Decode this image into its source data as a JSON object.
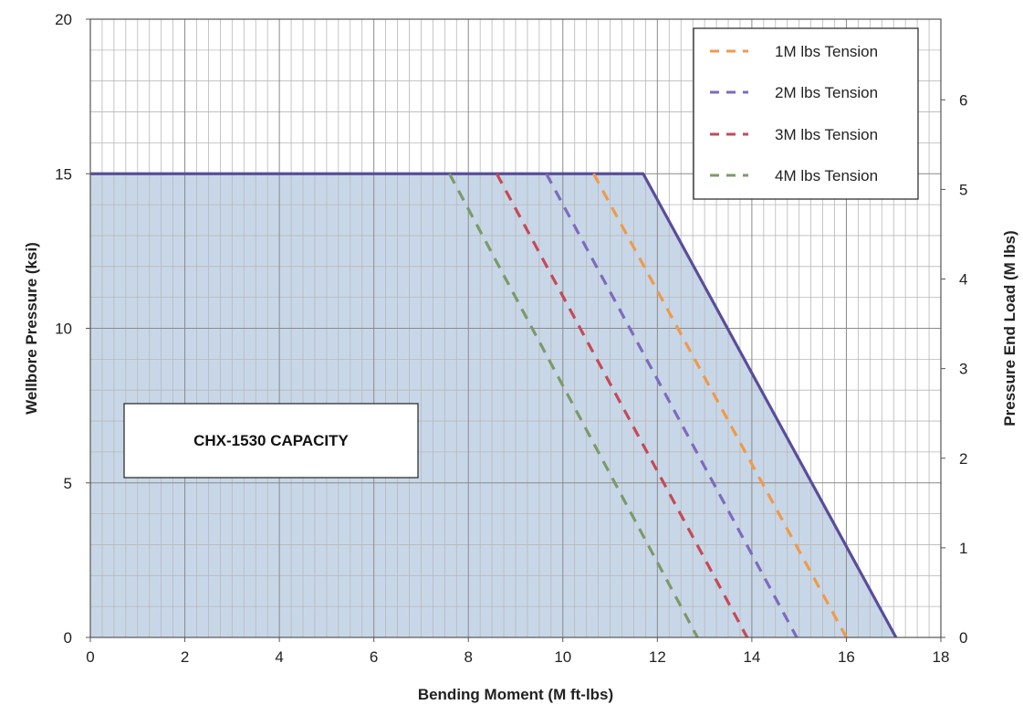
{
  "chart_data": {
    "type": "line",
    "title": "",
    "xlabel": "Bending Moment (M ft-lbs)",
    "ylabel": "Wellbore Pressure (ksi)",
    "y2label": "Pressure End Load (M lbs)",
    "xlim": [
      0,
      18
    ],
    "ylim": [
      0,
      20
    ],
    "y2lim": [
      0,
      6.9
    ],
    "x_ticks": [
      0,
      2,
      4,
      6,
      8,
      10,
      12,
      14,
      16,
      18
    ],
    "x_tick_labels": [
      "0",
      "2",
      "4",
      "6",
      "8",
      "10",
      "12",
      "14",
      "16",
      "18"
    ],
    "y_ticks": [
      0,
      5,
      10,
      15,
      20
    ],
    "y_tick_labels": [
      "0",
      "5",
      "10",
      "15",
      "20"
    ],
    "y2_ticks": [
      0,
      1,
      2,
      3,
      4,
      5,
      6
    ],
    "y2_tick_labels": [
      "0",
      "1",
      "2",
      "3",
      "4",
      "5",
      "6"
    ],
    "grid": true,
    "legend_position": "top-right",
    "capacity_region": {
      "label": "CHX-1530 CAPACITY",
      "boundary": {
        "x": [
          0,
          11.7,
          17.05
        ],
        "y": [
          15,
          15,
          0
        ]
      },
      "fill_color": "#c8d7e8",
      "line_color": "#5a4d9a"
    },
    "series": [
      {
        "name": "1M lbs Tension",
        "color": "#ef9a4a",
        "style": "dashed",
        "x": [
          10.65,
          16.0
        ],
        "y": [
          15,
          0
        ]
      },
      {
        "name": "2M lbs Tension",
        "color": "#7d6bbd",
        "style": "dashed",
        "x": [
          9.65,
          14.95
        ],
        "y": [
          15,
          0
        ]
      },
      {
        "name": "3M lbs Tension",
        "color": "#c44a58",
        "style": "dashed",
        "x": [
          8.6,
          13.9
        ],
        "y": [
          15,
          0
        ]
      },
      {
        "name": "4M lbs Tension",
        "color": "#7c9a6a",
        "style": "dashed",
        "x": [
          7.6,
          12.85
        ],
        "y": [
          15,
          0
        ]
      }
    ]
  }
}
